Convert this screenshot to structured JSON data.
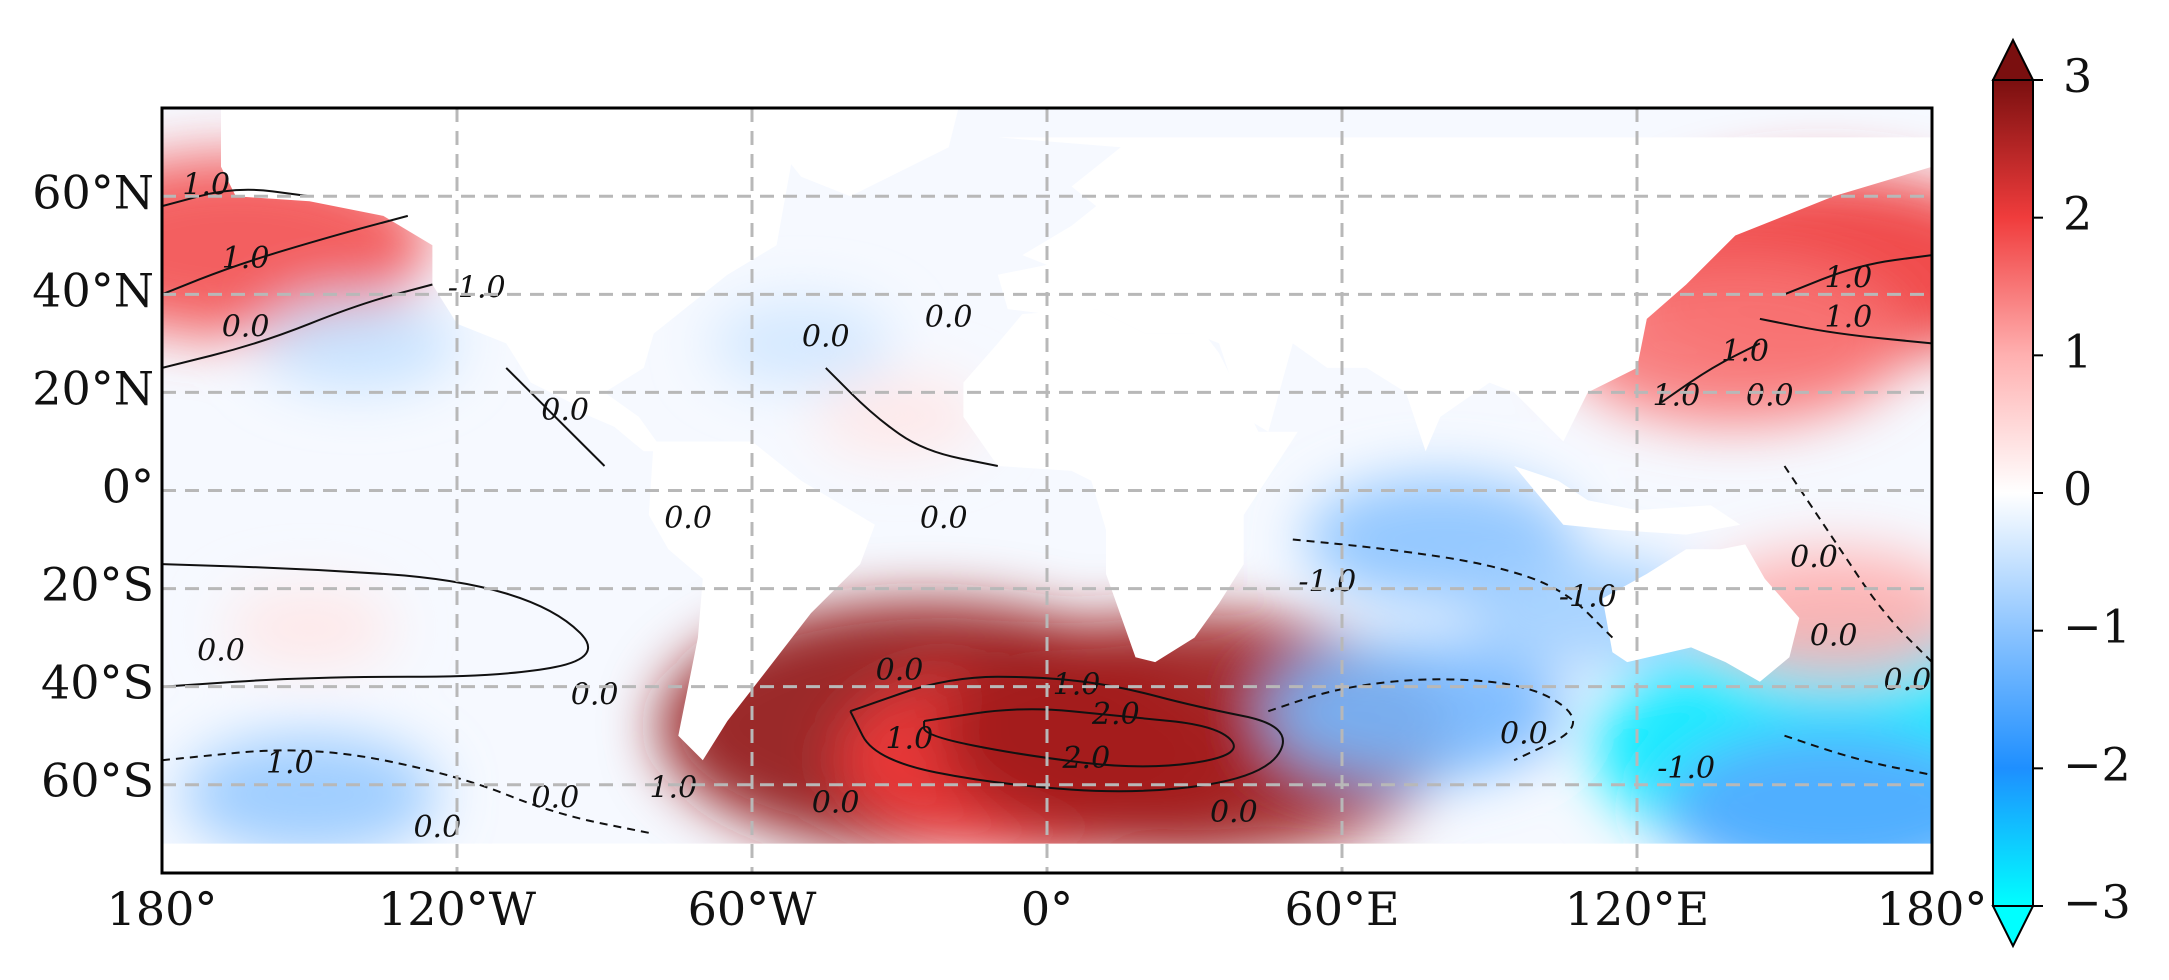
{
  "chart_data": {
    "type": "heatmap",
    "projection": "global map (cylindrical), ocean-only shaded field with contour lines",
    "xlim": [
      -180,
      180
    ],
    "ylim": [
      -78,
      78
    ],
    "x_tick_labels": [
      "180°",
      "120°W",
      "60°W",
      "0°",
      "60°E",
      "120°E",
      "180°"
    ],
    "x_tick_values": [
      -180,
      -120,
      -60,
      0,
      60,
      120,
      180
    ],
    "y_tick_labels": [
      "60°N",
      "40°N",
      "20°N",
      "0°",
      "20°S",
      "40°S",
      "60°S"
    ],
    "y_tick_values": [
      60,
      40,
      20,
      0,
      -20,
      -40,
      -60
    ],
    "grid": true,
    "grid_style": "dashed gray at tick positions",
    "colorbar": {
      "orientation": "vertical",
      "position": "right",
      "min": -3,
      "max": 3,
      "extend": "both",
      "tick_values": [
        3,
        2,
        1,
        0,
        -1,
        -2,
        -3
      ],
      "tick_labels": [
        "3",
        "2",
        "1",
        "0",
        "−1",
        "−2",
        "−3"
      ],
      "colormap_stops": [
        "#00ffff",
        "#1e8fff",
        "#8cc4ff",
        "#ffffff",
        "#ffb0b0",
        "#f03c3c",
        "#7a0f0f"
      ]
    },
    "anomalies": [
      {
        "lon": -165,
        "lat": 50,
        "value": 1.8
      },
      {
        "lon": -140,
        "lat": 30,
        "value": -0.5
      },
      {
        "lon": -150,
        "lat": -28,
        "value": 0.3
      },
      {
        "lon": -150,
        "lat": -62,
        "value": -0.9
      },
      {
        "lon": -25,
        "lat": -48,
        "value": 2.8
      },
      {
        "lon": 0,
        "lat": -55,
        "value": 2.0
      },
      {
        "lon": 30,
        "lat": -50,
        "value": 2.7
      },
      {
        "lon": -30,
        "lat": 15,
        "value": 0.3
      },
      {
        "lon": -50,
        "lat": 30,
        "value": -0.4
      },
      {
        "lon": 75,
        "lat": -45,
        "value": -1.2
      },
      {
        "lon": 80,
        "lat": -10,
        "value": -1.0
      },
      {
        "lon": 110,
        "lat": -25,
        "value": -0.8
      },
      {
        "lon": 158,
        "lat": 45,
        "value": 2.0
      },
      {
        "lon": 140,
        "lat": 30,
        "value": 1.5
      },
      {
        "lon": 165,
        "lat": -52,
        "value": -2.8
      },
      {
        "lon": 160,
        "lat": -65,
        "value": -1.5
      },
      {
        "lon": 160,
        "lat": -25,
        "value": 1.0
      }
    ],
    "contour_labels": [
      {
        "text": "1.0",
        "lon": -171,
        "lat": 62
      },
      {
        "text": "1.0",
        "lon": -163,
        "lat": 47
      },
      {
        "text": "0.0",
        "lon": -163,
        "lat": 33
      },
      {
        "text": "-1.0",
        "lon": -116,
        "lat": 41
      },
      {
        "text": "0.0",
        "lon": -98,
        "lat": 16
      },
      {
        "text": "0.0",
        "lon": -73,
        "lat": -6
      },
      {
        "text": "0.0",
        "lon": -45,
        "lat": 31
      },
      {
        "text": "0.0",
        "lon": -20,
        "lat": 35
      },
      {
        "text": "0.0",
        "lon": -21,
        "lat": -6
      },
      {
        "text": "0.0",
        "lon": -168,
        "lat": -33
      },
      {
        "text": "0.0",
        "lon": -92,
        "lat": -42
      },
      {
        "text": "1.0",
        "lon": -154,
        "lat": -56
      },
      {
        "text": "0.0",
        "lon": -100,
        "lat": -63
      },
      {
        "text": "1.0",
        "lon": -76,
        "lat": -61
      },
      {
        "text": "0.0",
        "lon": -124,
        "lat": -69
      },
      {
        "text": "0.0",
        "lon": -30,
        "lat": -37
      },
      {
        "text": "1.0",
        "lon": 6,
        "lat": -40
      },
      {
        "text": "2.0",
        "lon": 14,
        "lat": -46
      },
      {
        "text": "2.0",
        "lon": 8,
        "lat": -55
      },
      {
        "text": "1.0",
        "lon": -28,
        "lat": -51
      },
      {
        "text": "0.0",
        "lon": -43,
        "lat": -64
      },
      {
        "text": "0.0",
        "lon": 38,
        "lat": -66
      },
      {
        "text": "-1.0",
        "lon": 57,
        "lat": -19
      },
      {
        "text": "-1.0",
        "lon": 110,
        "lat": -22
      },
      {
        "text": "0.0",
        "lon": 97,
        "lat": -50
      },
      {
        "text": "-1.0",
        "lon": 130,
        "lat": -57
      },
      {
        "text": "1.0",
        "lon": 163,
        "lat": 43
      },
      {
        "text": "1.0",
        "lon": 163,
        "lat": 35
      },
      {
        "text": "1.0",
        "lon": 128,
        "lat": 19
      },
      {
        "text": "1.0",
        "lon": 142,
        "lat": 28
      },
      {
        "text": "0.0",
        "lon": 147,
        "lat": 19
      },
      {
        "text": "0.0",
        "lon": 156,
        "lat": -14
      },
      {
        "text": "0.0",
        "lon": 160,
        "lat": -30
      },
      {
        "text": "0.0",
        "lon": 175,
        "lat": -39
      }
    ]
  }
}
